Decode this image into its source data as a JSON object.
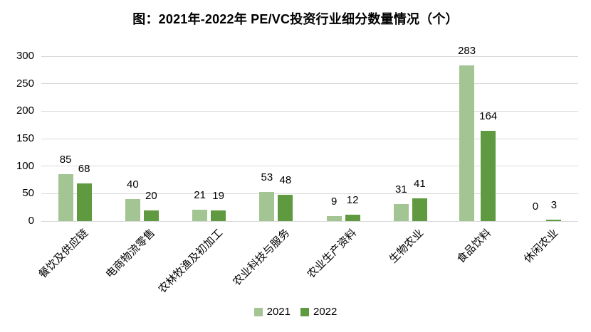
{
  "chart_data": {
    "type": "bar",
    "title": "图：2021年-2022年 PE/VC投资行业细分数量情况（个）",
    "categories": [
      "餐饮及供应链",
      "电商物流零售",
      "农林牧渔及初加工",
      "农业科技与服务",
      "农业生产资料",
      "生物农业",
      "食品饮料",
      "休闲农业"
    ],
    "series": [
      {
        "name": "2021",
        "color": "#a3c493",
        "values": [
          85,
          40,
          21,
          53,
          9,
          31,
          283,
          0
        ]
      },
      {
        "name": "2022",
        "color": "#5f9a40",
        "values": [
          68,
          20,
          19,
          48,
          12,
          41,
          164,
          3
        ]
      }
    ],
    "ylim": [
      0,
      300
    ],
    "yticks": [
      300,
      250,
      200,
      150,
      100,
      50,
      0
    ],
    "grid": true,
    "grid_color": "#d9d9d9",
    "legend_position": "bottom",
    "xlabel": "",
    "ylabel": ""
  }
}
